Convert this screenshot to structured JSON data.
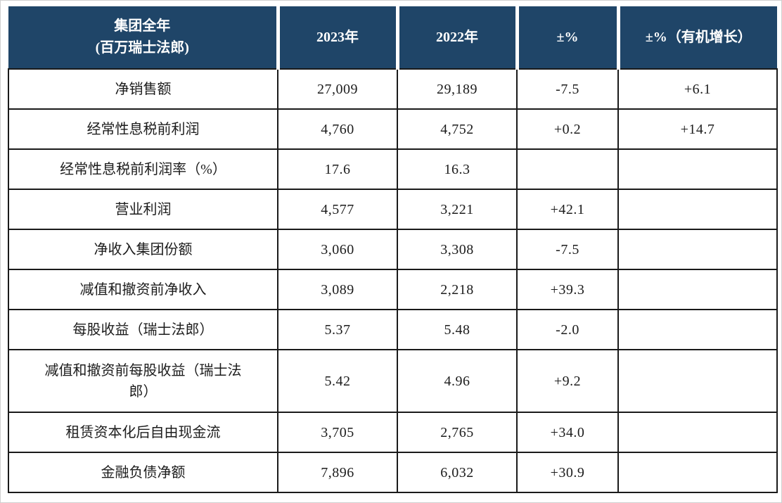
{
  "style": {
    "header_bg": "#1f4568",
    "header_text_color": "#ffffff",
    "grid_border_color": "#1a1a1a",
    "body_text_color": "#1c1c1c"
  },
  "table": {
    "header": {
      "col1_line1": "集团全年",
      "col1_line2": "(百万瑞士法郎)",
      "col2": "2023年",
      "col3": "2022年",
      "col4": "±%",
      "col5": "±%（有机增长）"
    },
    "rows": [
      {
        "label": "净销售额",
        "y2023": "27,009",
        "y2022": "29,189",
        "change": "-7.5",
        "organic": "+6.1"
      },
      {
        "label": "经常性息税前利润",
        "y2023": "4,760",
        "y2022": "4,752",
        "change": "+0.2",
        "organic": "+14.7"
      },
      {
        "label": "经常性息税前利润率（%）",
        "y2023": "17.6",
        "y2022": "16.3",
        "change": "",
        "organic": ""
      },
      {
        "label": "营业利润",
        "y2023": "4,577",
        "y2022": "3,221",
        "change": "+42.1",
        "organic": ""
      },
      {
        "label": "净收入集团份额",
        "y2023": "3,060",
        "y2022": "3,308",
        "change": "-7.5",
        "organic": ""
      },
      {
        "label": "减值和撤资前净收入",
        "y2023": "3,089",
        "y2022": "2,218",
        "change": "+39.3",
        "organic": ""
      },
      {
        "label": "每股收益（瑞士法郎）",
        "y2023": "5.37",
        "y2022": "5.48",
        "change": "-2.0",
        "organic": ""
      },
      {
        "label": "减值和撤资前每股收益（瑞士法郎）",
        "y2023": "5.42",
        "y2022": "4.96",
        "change": "+9.2",
        "organic": ""
      },
      {
        "label": "租赁资本化后自由现金流",
        "y2023": "3,705",
        "y2022": "2,765",
        "change": "+34.0",
        "organic": ""
      },
      {
        "label": "金融负债净额",
        "y2023": "7,896",
        "y2022": "6,032",
        "change": "+30.9",
        "organic": ""
      }
    ]
  }
}
